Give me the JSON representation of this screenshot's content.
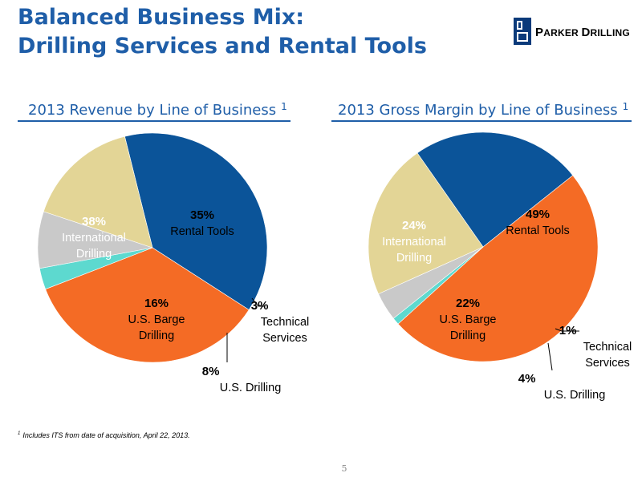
{
  "slide": {
    "title_line1": "Balanced Business Mix:",
    "title_line2": "Drilling Services and Rental Tools",
    "footnote_marker": "1",
    "footnote_text": "Includes ITS from date of acquisition, April 22, 2013.",
    "page_number": "5"
  },
  "logo": {
    "name_first_initial": "P",
    "name_first_rest": "ARKER",
    "name_second_initial": "D",
    "name_second_rest": "RILLING",
    "color": "#0b3a7a"
  },
  "chart_data": [
    {
      "type": "pie",
      "title": "2013 Revenue by Line of Business",
      "title_footnote": "1",
      "labels": [
        "International Drilling",
        "Rental Tools",
        "Technical Services",
        "U.S. Drilling",
        "U.S. Barge Drilling"
      ],
      "label_lines": [
        "International\nDrilling",
        "Rental Tools",
        "Technical\nServices",
        "U.S. Drilling",
        "U.S. Barge\nDrilling"
      ],
      "values": [
        38,
        35,
        3,
        8,
        16
      ],
      "value_labels": [
        "38%",
        "35%",
        "3%",
        "8%",
        "16%"
      ],
      "colors": [
        "#0b5499",
        "#f46b25",
        "#5dd9cf",
        "#c9c9c9",
        "#e3d596"
      ]
    },
    {
      "type": "pie",
      "title": "2013 Gross Margin by Line of Business",
      "title_footnote": "1",
      "labels": [
        "International Drilling",
        "Rental Tools",
        "Technical Services",
        "U.S. Drilling",
        "U.S. Barge Drilling"
      ],
      "label_lines": [
        "International\nDrilling",
        "Rental Tools",
        "Technical\nServices",
        "U.S. Drilling",
        "U.S. Barge\nDrilling"
      ],
      "values": [
        24,
        49,
        1,
        4,
        22
      ],
      "value_labels": [
        "24%",
        "49%",
        "1%",
        "4%",
        "22%"
      ],
      "colors": [
        "#0b5499",
        "#f46b25",
        "#5dd9cf",
        "#c9c9c9",
        "#e3d596"
      ]
    }
  ]
}
